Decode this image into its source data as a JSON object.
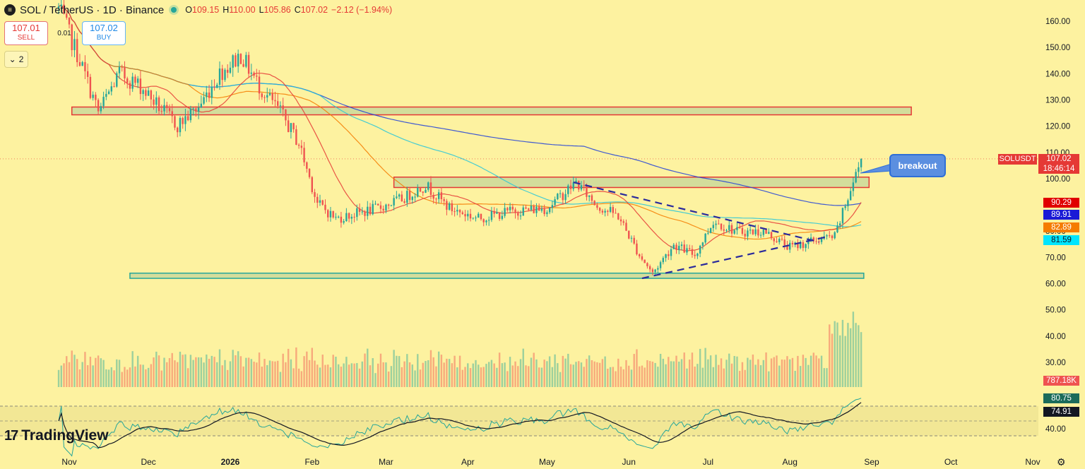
{
  "header": {
    "symbol_icon": "solana-icon",
    "title": "SOL / TetherUS · 1D · Binance",
    "o_label": "O",
    "o_value": "109.15",
    "h_label": "H",
    "h_value": "110.00",
    "l_label": "L",
    "l_value": "105.86",
    "c_label": "C",
    "c_value": "107.02",
    "change": "−2.12 (−1.94%)"
  },
  "trade": {
    "sell_price": "107.01",
    "sell_label": "SELL",
    "spread": "0.01",
    "buy_price": "107.02",
    "buy_label": "BUY"
  },
  "indicators_toggle": {
    "count": "2"
  },
  "branding": {
    "logo_text": "TradingView"
  },
  "annotations": {
    "breakout": "breakout"
  },
  "price_tags": {
    "symbol": "SOLUSDT",
    "last": "107.02",
    "countdown": "18:46:14",
    "ma1": "90.29",
    "ma2": "89.91",
    "ma3": "82.89",
    "ma4": "81.59",
    "volume": "787.18K",
    "rsi": "80.75",
    "rsi_ma": "74.91"
  },
  "colors": {
    "background": "#fdf2a0",
    "up": "#26a69a",
    "down": "#ef5350",
    "ma1": "#e53935",
    "ma2": "#1e3fd9",
    "ma3": "#f57c00",
    "ma4": "#26c6da",
    "zone_fill": "#c8d79a",
    "trendline": "#2a2a9c"
  },
  "chart_data": {
    "type": "candlestick",
    "y_ticks": [
      "160.00",
      "150.00",
      "140.00",
      "130.00",
      "120.00",
      "110.00",
      "100.00",
      "90.00",
      "80.00",
      "70.00",
      "60.00",
      "50.00",
      "40.00",
      "30.00"
    ],
    "rsi_ticks": [
      "40.00"
    ],
    "x_ticks": [
      "Nov",
      "Dec",
      "2026",
      "Feb",
      "Mar",
      "Apr",
      "May",
      "Jun",
      "Jul",
      "Aug",
      "Sep",
      "Oct",
      "Nov"
    ],
    "price_anchors": [
      [
        "2025-10-28",
        165
      ],
      [
        "2025-11-05",
        145
      ],
      [
        "2025-11-12",
        125
      ],
      [
        "2025-11-20",
        140
      ],
      [
        "2025-11-28",
        135
      ],
      [
        "2025-12-05",
        127
      ],
      [
        "2025-12-12",
        120
      ],
      [
        "2025-12-20",
        127
      ],
      [
        "2025-12-28",
        140
      ],
      [
        "2026-01-05",
        147
      ],
      [
        "2026-01-12",
        135
      ],
      [
        "2026-01-20",
        125
      ],
      [
        "2026-01-27",
        113
      ],
      [
        "2026-02-03",
        90
      ],
      [
        "2026-02-10",
        84
      ],
      [
        "2026-02-18",
        86
      ],
      [
        "2026-02-26",
        88
      ],
      [
        "2026-03-08",
        92
      ],
      [
        "2026-03-16",
        97
      ],
      [
        "2026-03-25",
        88
      ],
      [
        "2026-04-05",
        84
      ],
      [
        "2026-04-18",
        87
      ],
      [
        "2026-05-01",
        88
      ],
      [
        "2026-05-12",
        98
      ],
      [
        "2026-05-20",
        89
      ],
      [
        "2026-05-28",
        85
      ],
      [
        "2026-06-05",
        70
      ],
      [
        "2026-06-10",
        63
      ],
      [
        "2026-06-18",
        74
      ],
      [
        "2026-06-26",
        70
      ],
      [
        "2026-07-03",
        83
      ],
      [
        "2026-07-12",
        79
      ],
      [
        "2026-07-22",
        79
      ],
      [
        "2026-08-01",
        73
      ],
      [
        "2026-08-12",
        76
      ],
      [
        "2026-08-18",
        77
      ],
      [
        "2026-08-24",
        95
      ],
      [
        "2026-08-28",
        107
      ]
    ],
    "moving_averages": [
      {
        "value": 90.29,
        "color": "#e53935"
      },
      {
        "value": 89.91,
        "color": "#1e3fd9"
      },
      {
        "value": 82.89,
        "color": "#f57c00"
      },
      {
        "value": 81.59,
        "color": "#26c6da"
      }
    ],
    "zones": [
      {
        "from": "2025-11-02",
        "to": "2026-09-16",
        "low": 124,
        "high": 127,
        "kind": "resistance"
      },
      {
        "from": "2026-03-04",
        "to": "2026-08-31",
        "low": 96,
        "high": 100,
        "kind": "resistance"
      },
      {
        "from": "2025-11-24",
        "to": "2026-08-29",
        "low": 61,
        "high": 63,
        "kind": "support"
      }
    ],
    "trendlines": [
      {
        "from": [
          "2026-05-11",
          98
        ],
        "to": [
          "2026-08-12",
          75
        ],
        "style": "dashed"
      },
      {
        "from": [
          "2026-06-06",
          61
        ],
        "to": [
          "2026-08-15",
          77
        ],
        "style": "dashed"
      }
    ],
    "last_price": 107.02,
    "volume_last": "787.18K",
    "rsi_last": 80.75,
    "rsi_ma_last": 74.91,
    "grid": false,
    "legend": "none"
  }
}
